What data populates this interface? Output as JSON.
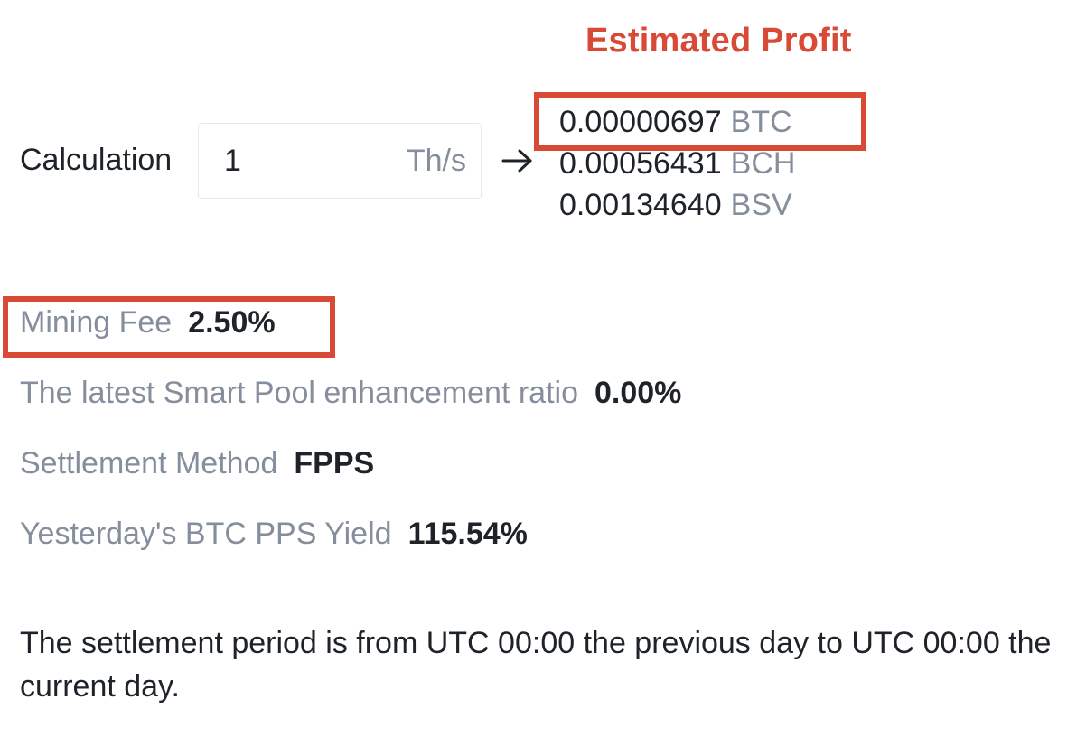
{
  "annotation": {
    "title": "Estimated Profit",
    "accent_color": "#d94a36"
  },
  "calculator": {
    "label": "Calculation",
    "input_value": "1",
    "unit": "Th/s",
    "arrow_icon": "arrow-right-icon"
  },
  "profits": [
    {
      "amount": "0.00000697",
      "coin": "BTC"
    },
    {
      "amount": "0.00056431",
      "coin": "BCH"
    },
    {
      "amount": "0.00134640",
      "coin": "BSV"
    }
  ],
  "info": {
    "mining_fee": {
      "label": "Mining Fee",
      "value": "2.50%"
    },
    "smart_pool_ratio": {
      "label": "The latest Smart Pool enhancement ratio",
      "value": "0.00%"
    },
    "settlement_method": {
      "label": "Settlement Method",
      "value": "FPPS"
    },
    "pps_yield": {
      "label": "Yesterday's BTC PPS Yield",
      "value": "115.54%"
    }
  },
  "note": "The settlement period is from UTC 00:00 the previous day to UTC 00:00 the current day.",
  "colors": {
    "primary_text": "#1e2329",
    "secondary_text": "#848e9c",
    "highlight": "#d94a36",
    "input_border": "#e6e8ea"
  }
}
